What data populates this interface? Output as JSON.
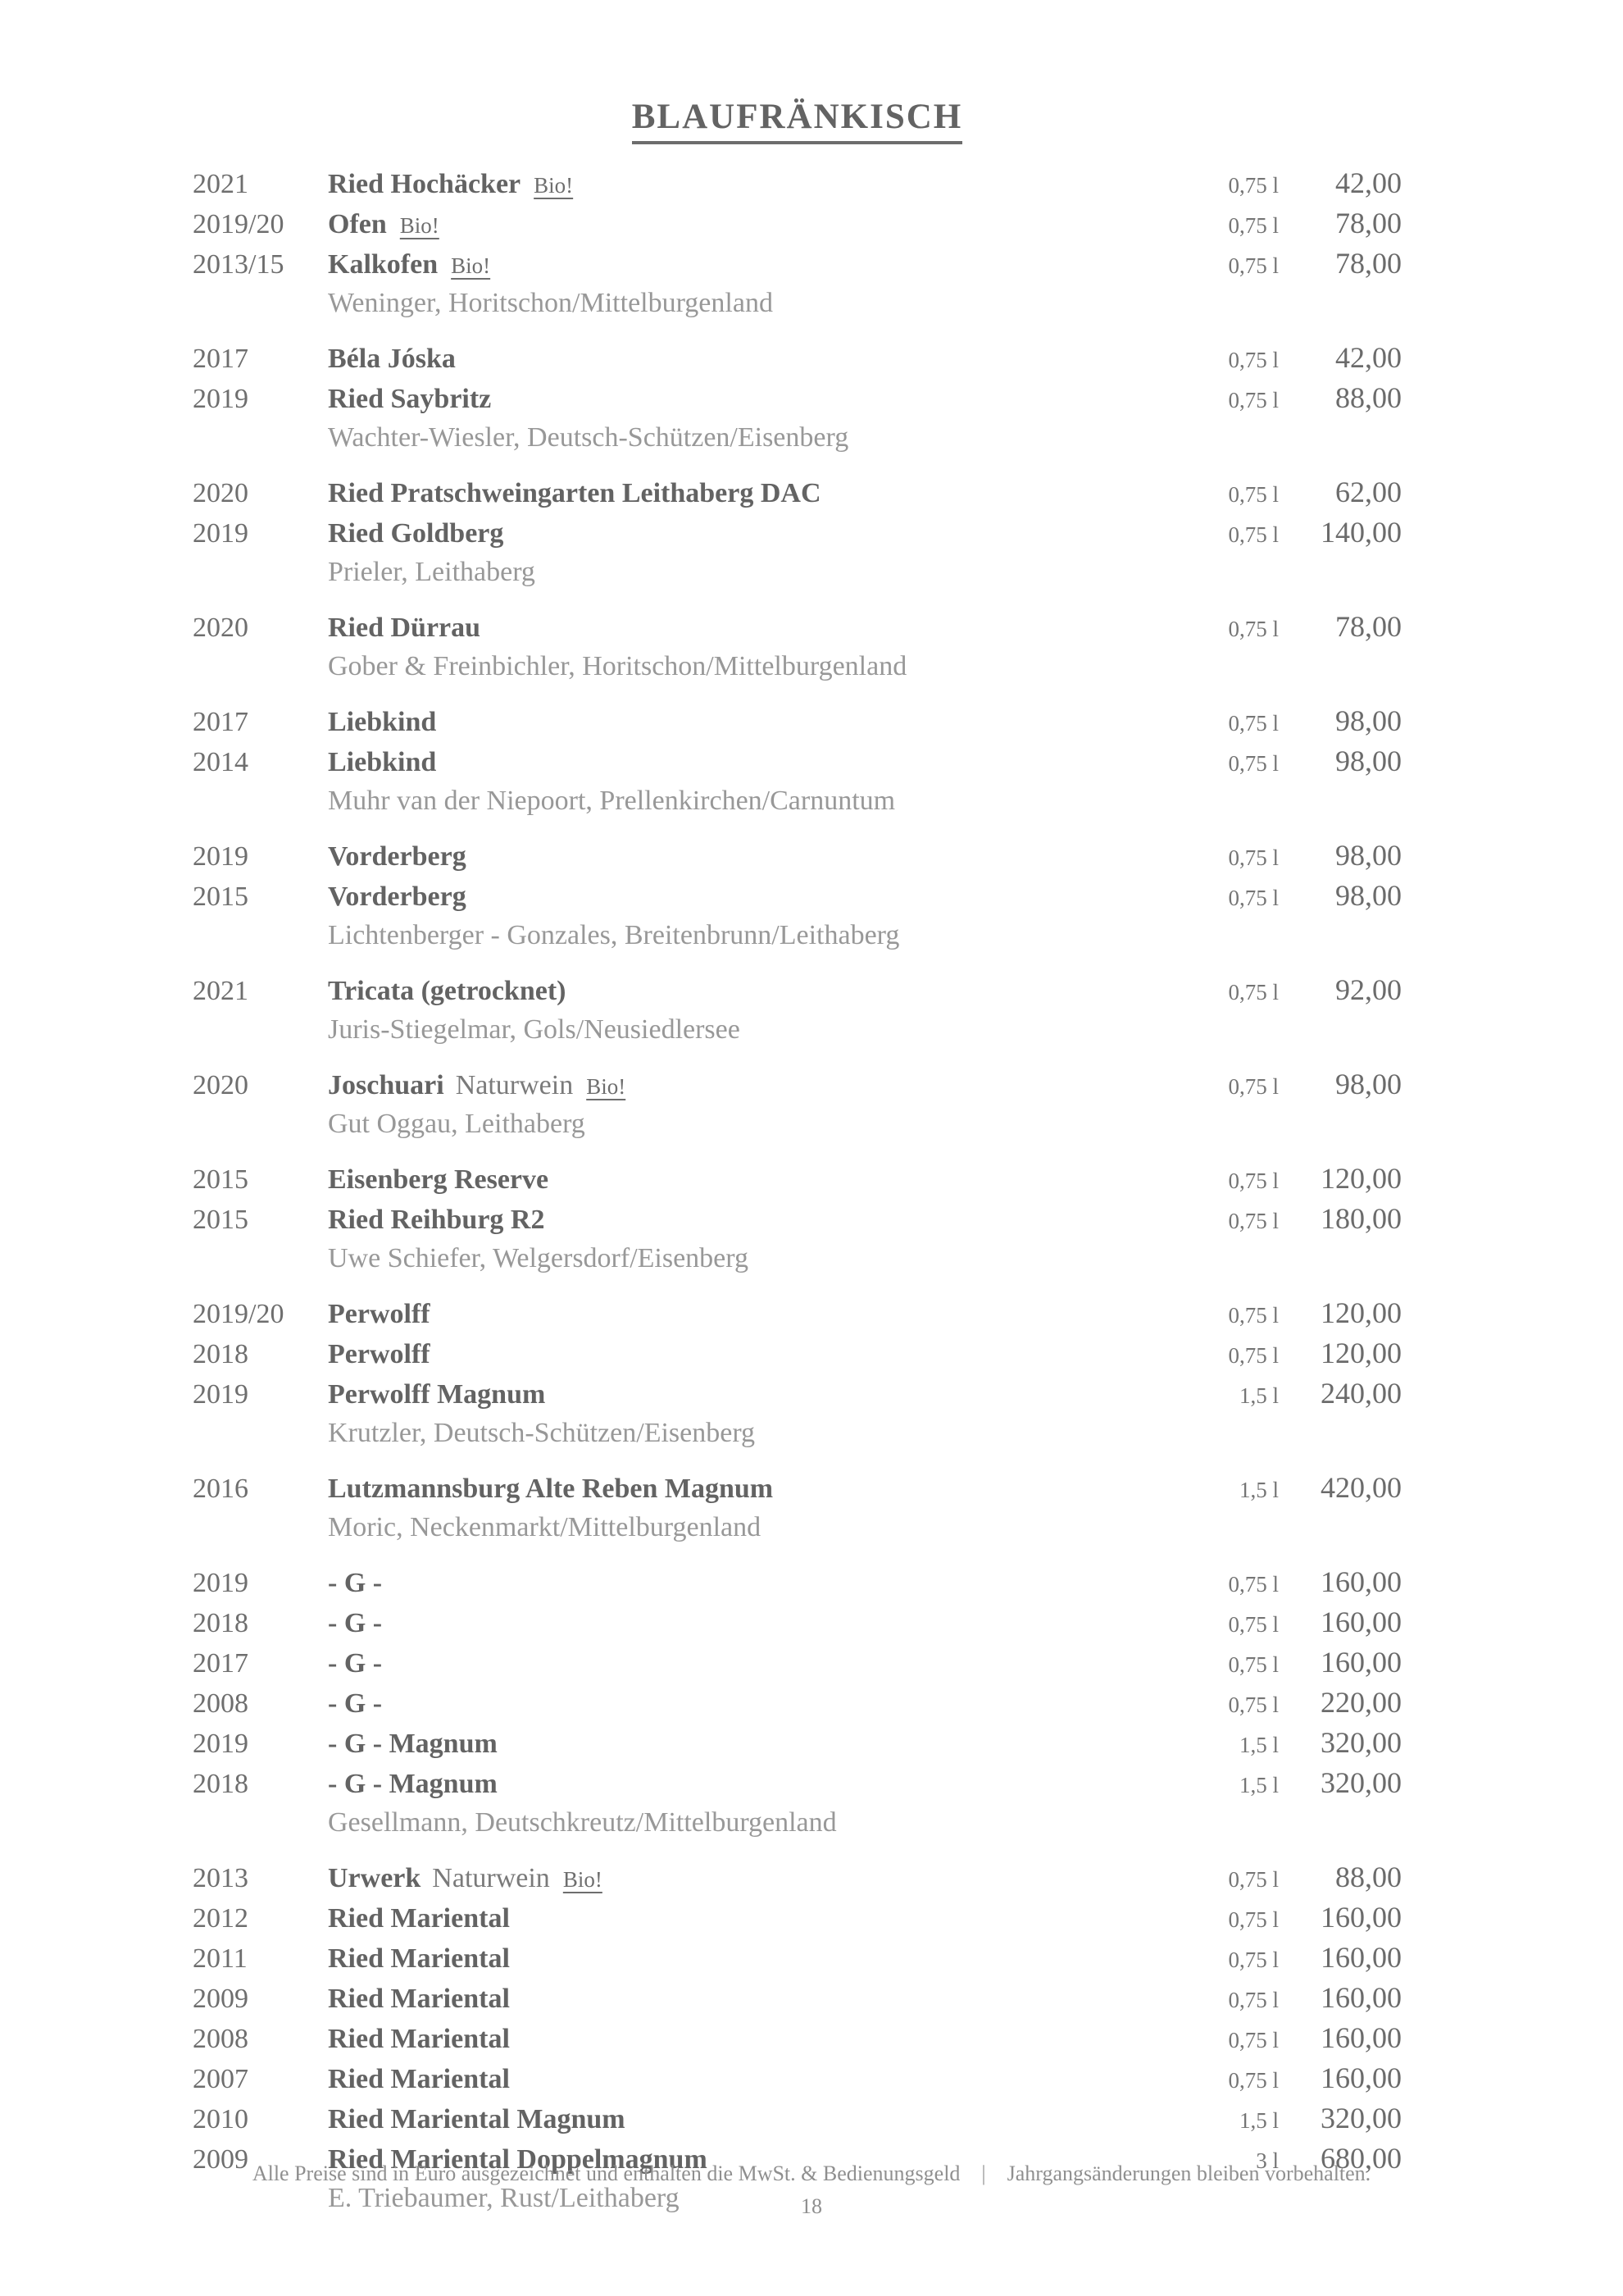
{
  "title": "BLAUFRÄNKISCH",
  "groups": [
    {
      "producer": "Weninger, Horitschon/Mittelburgenland",
      "wines": [
        {
          "year": "2021",
          "name": "Ried Hochäcker",
          "badge": "Bio!",
          "volume": "0,75 l",
          "price": "42,00"
        },
        {
          "year": "2019/20",
          "name": "Ofen",
          "badge": "Bio!",
          "volume": "0,75 l",
          "price": "78,00"
        },
        {
          "year": "2013/15",
          "name": "Kalkofen",
          "badge": "Bio!",
          "volume": "0,75 l",
          "price": "78,00"
        }
      ]
    },
    {
      "producer": "Wachter-Wiesler, Deutsch-Schützen/Eisenberg",
      "wines": [
        {
          "year": "2017",
          "name": "Béla Jóska",
          "volume": "0,75 l",
          "price": "42,00"
        },
        {
          "year": "2019",
          "name": "Ried Saybritz",
          "volume": "0,75 l",
          "price": "88,00"
        }
      ]
    },
    {
      "producer": "Prieler, Leithaberg",
      "wines": [
        {
          "year": "2020",
          "name": "Ried Pratschweingarten Leithaberg DAC",
          "volume": "0,75 l",
          "price": "62,00"
        },
        {
          "year": "2019",
          "name": "Ried Goldberg",
          "volume": "0,75 l",
          "price": "140,00"
        }
      ]
    },
    {
      "producer": "Gober & Freinbichler, Horitschon/Mittelburgenland",
      "wines": [
        {
          "year": "2020",
          "name": "Ried Dürrau",
          "volume": "0,75 l",
          "price": "78,00"
        }
      ]
    },
    {
      "producer": "Muhr van der Niepoort, Prellenkirchen/Carnuntum",
      "wines": [
        {
          "year": "2017",
          "name": "Liebkind",
          "volume": "0,75 l",
          "price": "98,00"
        },
        {
          "year": "2014",
          "name": "Liebkind",
          "volume": "0,75 l",
          "price": "98,00"
        }
      ]
    },
    {
      "producer": "Lichtenberger - Gonzales, Breitenbrunn/Leithaberg",
      "wines": [
        {
          "year": "2019",
          "name": "Vorderberg",
          "volume": "0,75 l",
          "price": "98,00"
        },
        {
          "year": "2015",
          "name": "Vorderberg",
          "volume": "0,75 l",
          "price": "98,00"
        }
      ]
    },
    {
      "producer": "Juris-Stiegelmar, Gols/Neusiedlersee",
      "wines": [
        {
          "year": "2021",
          "name": "Tricata  (getrocknet)",
          "volume": "0,75 l",
          "price": "92,00"
        }
      ]
    },
    {
      "producer": "Gut Oggau, Leithaberg",
      "wines": [
        {
          "year": "2020",
          "name": "Joschuari",
          "suffix": "Naturwein",
          "badge": "Bio!",
          "volume": "0,75 l",
          "price": "98,00"
        }
      ]
    },
    {
      "producer": "Uwe Schiefer, Welgersdorf/Eisenberg",
      "wines": [
        {
          "year": "2015",
          "name": "Eisenberg Reserve",
          "volume": "0,75 l",
          "price": "120,00"
        },
        {
          "year": "2015",
          "name": "Ried Reihburg R2",
          "volume": "0,75 l",
          "price": "180,00"
        }
      ]
    },
    {
      "producer": "Krutzler, Deutsch-Schützen/Eisenberg",
      "wines": [
        {
          "year": "2019/20",
          "name": "Perwolff",
          "volume": "0,75 l",
          "price": "120,00"
        },
        {
          "year": "2018",
          "name": "Perwolff",
          "volume": "0,75 l",
          "price": "120,00"
        },
        {
          "year": "2019",
          "name": "Perwolff Magnum",
          "volume": "1,5 l",
          "price": "240,00"
        }
      ]
    },
    {
      "producer": "Moric, Neckenmarkt/Mittelburgenland",
      "wines": [
        {
          "year": "2016",
          "name": "Lutzmannsburg Alte Reben Magnum",
          "volume": "1,5 l",
          "price": "420,00"
        }
      ]
    },
    {
      "producer": "Gesellmann, Deutschkreutz/Mittelburgenland",
      "wines": [
        {
          "year": "2019",
          "name": "- G -",
          "volume": "0,75 l",
          "price": "160,00"
        },
        {
          "year": "2018",
          "name": "- G -",
          "volume": "0,75 l",
          "price": "160,00"
        },
        {
          "year": "2017",
          "name": "- G -",
          "volume": "0,75 l",
          "price": "160,00"
        },
        {
          "year": "2008",
          "name": "- G -",
          "volume": "0,75 l",
          "price": "220,00"
        },
        {
          "year": "2019",
          "name": "- G - Magnum",
          "volume": "1,5 l",
          "price": "320,00"
        },
        {
          "year": "2018",
          "name": "- G - Magnum",
          "volume": "1,5 l",
          "price": "320,00"
        }
      ]
    },
    {
      "producer": "E. Triebaumer, Rust/Leithaberg",
      "wines": [
        {
          "year": "2013",
          "name": "Urwerk",
          "suffix": "Naturwein",
          "badge": "Bio!",
          "volume": "0,75 l",
          "price": "88,00"
        },
        {
          "year": "2012",
          "name": "Ried Mariental",
          "volume": "0,75 l",
          "price": "160,00"
        },
        {
          "year": "2011",
          "name": "Ried Mariental",
          "volume": "0,75 l",
          "price": "160,00"
        },
        {
          "year": "2009",
          "name": "Ried Mariental",
          "volume": "0,75 l",
          "price": "160,00"
        },
        {
          "year": "2008",
          "name": "Ried Mariental",
          "volume": "0,75 l",
          "price": "160,00"
        },
        {
          "year": "2007",
          "name": "Ried Mariental",
          "volume": "0,75 l",
          "price": "160,00"
        },
        {
          "year": "2010",
          "name": "Ried Mariental Magnum",
          "volume": "1,5 l",
          "price": "320,00"
        },
        {
          "year": "2009",
          "name": "Ried Mariental Doppelmagnum",
          "volume": "3 l",
          "price": "680,00"
        }
      ]
    }
  ],
  "footer": {
    "pricing_note": "Alle Preise sind in Euro ausgezeichnet und enthalten die MwSt. & Bedienungsgeld",
    "separator": "|",
    "vintage_note": "Jahrgangsänderungen bleiben vorbehalten.",
    "page_number": "18"
  }
}
